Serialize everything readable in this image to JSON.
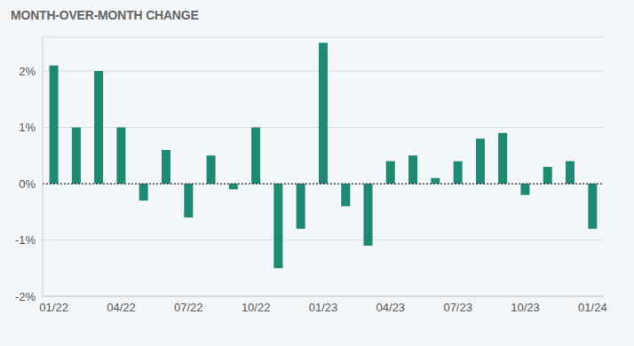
{
  "chart_data": {
    "type": "bar",
    "title": "MONTH-OVER-MONTH CHANGE",
    "categories": [
      "01/22",
      null,
      null,
      "04/22",
      null,
      null,
      "07/22",
      null,
      null,
      "10/22",
      null,
      null,
      "01/23",
      null,
      null,
      "04/23",
      null,
      null,
      "07/23",
      null,
      null,
      "10/23",
      null,
      null,
      "01/24"
    ],
    "values": [
      2.1,
      1.0,
      2.0,
      1.0,
      -0.3,
      0.6,
      -0.6,
      0.5,
      -0.1,
      1.0,
      -1.5,
      -0.8,
      2.5,
      -0.4,
      -1.1,
      0.4,
      0.5,
      0.1,
      0.4,
      0.8,
      0.9,
      -0.2,
      0.3,
      0.4,
      -0.8
    ],
    "color": "#1e8a74",
    "ylim": [
      -2,
      2.6
    ],
    "yticks": [
      {
        "value": -2,
        "label": "-2%"
      },
      {
        "value": -1,
        "label": "-1%"
      },
      {
        "value": 0,
        "label": "0%"
      },
      {
        "value": 1,
        "label": "1%"
      },
      {
        "value": 2,
        "label": "2%"
      }
    ],
    "grid": true
  }
}
